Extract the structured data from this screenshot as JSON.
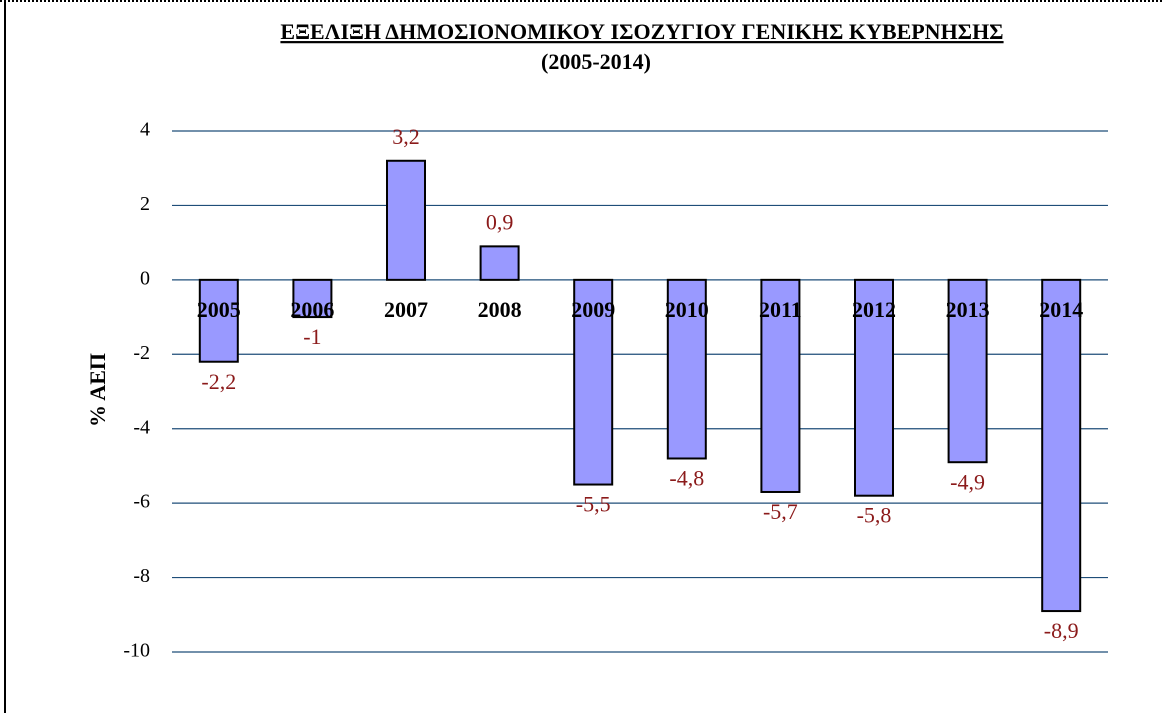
{
  "chart_data": {
    "type": "bar",
    "title": "ΕΞΕΛΙΞΗ ΔΗΜΟΣΙΟΝΟΜΙΚΟΥ ΙΣΟΖΥΓΙΟΥ ΓΕΝΙΚΗΣ ΚΥΒΕΡΝΗΣΗΣ",
    "subtitle": "(2005-2014)",
    "y_label": "% ΑΕΠ",
    "categories": [
      "2005",
      "2006",
      "2007",
      "2008",
      "2009",
      "2010",
      "2011",
      "2012",
      "2013",
      "2014"
    ],
    "values": [
      -2.2,
      -1,
      3.2,
      0.9,
      -5.5,
      -4.8,
      -5.7,
      -5.8,
      -4.9,
      -8.9
    ],
    "value_labels": [
      "-2,2",
      "-1",
      "3,2",
      "0,9",
      "-5,5",
      "-4,8",
      "-5,7",
      "-5,8",
      "-4,9",
      "-8,9"
    ],
    "color": "#9999ff",
    "ylim": [
      -10,
      4
    ],
    "yticks": [
      4,
      2,
      0,
      -2,
      -4,
      -6,
      -8,
      -10
    ],
    "grid": true
  }
}
